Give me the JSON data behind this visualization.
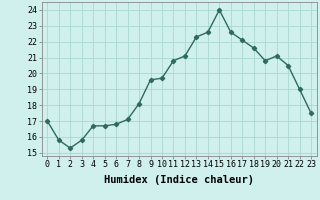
{
  "x": [
    0,
    1,
    2,
    3,
    4,
    5,
    6,
    7,
    8,
    9,
    10,
    11,
    12,
    13,
    14,
    15,
    16,
    17,
    18,
    19,
    20,
    21,
    22,
    23
  ],
  "y": [
    17.0,
    15.8,
    15.3,
    15.8,
    16.7,
    16.7,
    16.8,
    17.1,
    18.1,
    19.6,
    19.7,
    20.8,
    21.1,
    22.3,
    22.6,
    24.0,
    22.6,
    22.1,
    21.6,
    20.8,
    21.1,
    20.5,
    19.0,
    17.5
  ],
  "xlim": [
    -0.5,
    23.5
  ],
  "ylim": [
    14.8,
    24.5
  ],
  "yticks": [
    15,
    16,
    17,
    18,
    19,
    20,
    21,
    22,
    23,
    24
  ],
  "xticks": [
    0,
    1,
    2,
    3,
    4,
    5,
    6,
    7,
    8,
    9,
    10,
    11,
    12,
    13,
    14,
    15,
    16,
    17,
    18,
    19,
    20,
    21,
    22,
    23
  ],
  "xlabel": "Humidex (Indice chaleur)",
  "line_color": "#2e6b5e",
  "marker": "D",
  "marker_size": 2.2,
  "line_width": 1.0,
  "bg_color": "#cff0ec",
  "grid_color": "#aad8d0",
  "xlabel_fontsize": 7.5,
  "tick_fontsize": 6.0
}
